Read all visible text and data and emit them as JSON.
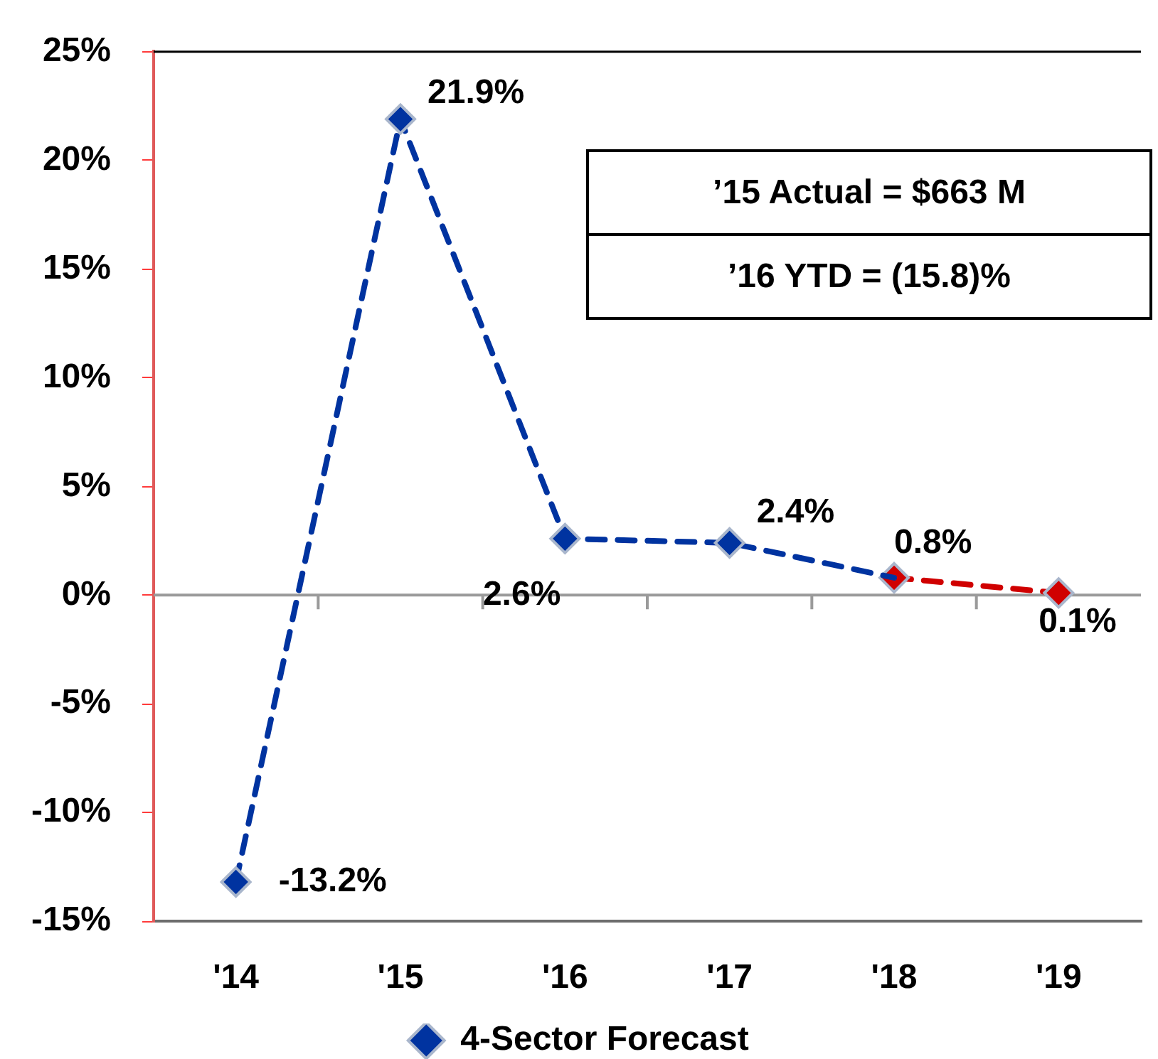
{
  "chart_data": {
    "type": "line",
    "categories": [
      "'14",
      "'15",
      "'16",
      "'17",
      "'18",
      "'19"
    ],
    "series": [
      {
        "name": "4-Sector Forecast",
        "color": "#0033a0",
        "values": [
          -13.2,
          21.9,
          2.6,
          2.4,
          0.8,
          null
        ],
        "value_labels": [
          "-13.2%",
          "21.9%",
          "2.6%",
          "2.4%",
          null,
          null
        ]
      },
      {
        "color": "#d00000",
        "values": [
          null,
          null,
          null,
          null,
          0.8,
          0.1
        ],
        "value_labels": [
          null,
          null,
          null,
          null,
          "0.8%",
          "0.1%"
        ]
      }
    ],
    "ylim": [
      -15,
      25
    ],
    "yticks": [
      {
        "value": -15,
        "label": "-15%"
      },
      {
        "value": -10,
        "label": "-10%"
      },
      {
        "value": -5,
        "label": "-5%"
      },
      {
        "value": 0,
        "label": "0%"
      },
      {
        "value": 5,
        "label": "5%"
      },
      {
        "value": 10,
        "label": "10%"
      },
      {
        "value": 15,
        "label": "15%"
      },
      {
        "value": 20,
        "label": "20%"
      },
      {
        "value": 25,
        "label": "25%"
      }
    ],
    "annotations": [
      "’15 Actual = $663 M",
      "’16 YTD = (15.8)%"
    ],
    "legend": "bottom",
    "marker": "diamond",
    "line_style": "dashed"
  }
}
